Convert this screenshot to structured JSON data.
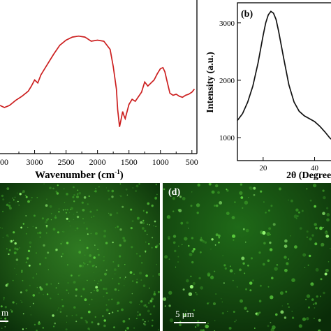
{
  "panel_a": {
    "label": "",
    "xlabel": "Wavenumber (cm",
    "xlabel_sup": "-1",
    "xlabel_close": ")",
    "xticks": [
      "3000",
      "2500",
      "2000",
      "1500",
      "1000",
      "500"
    ],
    "edge_tick": "00",
    "line_color": "#cc1f1f"
  },
  "panel_b": {
    "label": "(b)",
    "ylabel": "Intensity (a.u.)",
    "xlabel": "2θ (Degree",
    "yticks": [
      "3000",
      "2000",
      "1000"
    ],
    "xticks": [
      "20",
      "40"
    ],
    "line_color": "#111111"
  },
  "panel_c": {
    "label": "",
    "scale_text": "m"
  },
  "panel_d": {
    "label": "(d)",
    "scale_text": "5 μm"
  },
  "chart_data": [
    {
      "type": "line",
      "title": "",
      "xlabel": "Wavenumber (cm-1)",
      "ylabel": "",
      "xlim": [
        3550,
        420
      ],
      "x": [
        3550,
        3480,
        3400,
        3300,
        3200,
        3100,
        3050,
        3000,
        2950,
        2900,
        2800,
        2700,
        2600,
        2500,
        2400,
        2300,
        2200,
        2100,
        2000,
        1900,
        1800,
        1750,
        1700,
        1680,
        1650,
        1630,
        1600,
        1580,
        1560,
        1500,
        1450,
        1400,
        1300,
        1250,
        1200,
        1100,
        1050,
        1000,
        960,
        930,
        900,
        850,
        800,
        750,
        700,
        650,
        600,
        550,
        500,
        460
      ],
      "y": [
        0.24,
        0.22,
        0.24,
        0.29,
        0.33,
        0.38,
        0.43,
        0.49,
        0.46,
        0.54,
        0.64,
        0.74,
        0.83,
        0.88,
        0.91,
        0.92,
        0.91,
        0.87,
        0.88,
        0.87,
        0.79,
        0.62,
        0.4,
        0.2,
        0.03,
        0.09,
        0.18,
        0.14,
        0.11,
        0.25,
        0.3,
        0.28,
        0.37,
        0.47,
        0.43,
        0.49,
        0.55,
        0.6,
        0.61,
        0.57,
        0.49,
        0.36,
        0.34,
        0.35,
        0.33,
        0.32,
        0.34,
        0.35,
        0.37,
        0.4
      ]
    },
    {
      "type": "line",
      "title": "",
      "xlabel": "2θ (Degree",
      "ylabel": "Intensity (a.u.)",
      "xlim": [
        10,
        48
      ],
      "ylim": [
        600,
        3350
      ],
      "x": [
        10,
        12,
        14,
        16,
        18,
        20,
        21,
        22,
        23,
        24,
        25,
        26,
        28,
        30,
        32,
        34,
        36,
        38,
        40,
        42,
        44,
        46,
        47.5
      ],
      "y": [
        1300,
        1420,
        1620,
        1900,
        2300,
        2780,
        3000,
        3140,
        3200,
        3170,
        3060,
        2860,
        2380,
        1920,
        1620,
        1460,
        1380,
        1330,
        1280,
        1200,
        1100,
        990,
        940
      ]
    }
  ]
}
